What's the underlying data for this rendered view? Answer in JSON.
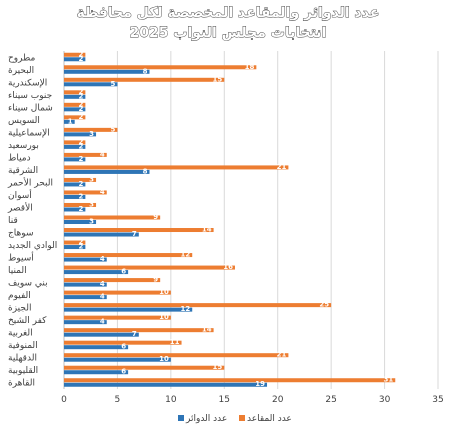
{
  "chart_data": {
    "type": "bar",
    "orientation": "horizontal",
    "title": "عدد الدوائر والمقاعد المخصصة لكل محافظة",
    "subtitle": "انتخابات مجلس النواب 2025",
    "categories": [
      "مطروح",
      "البحيرة",
      "الإسكندرية",
      "جنوب سيناء",
      "شمال سيناء",
      "السويس",
      "الإسماعيلية",
      "بورسعيد",
      "دمياط",
      "الشرقية",
      "البحر الأحمر",
      "أسوان",
      "الأقصر",
      "قنا",
      "سوهاج",
      "الوادي الجديد",
      "أسيوط",
      "المنيا",
      "بني سويف",
      "الفيوم",
      "الجيزة",
      "كفر الشيخ",
      "الغربية",
      "المنوفية",
      "الدقهلية",
      "القليوبية",
      "القاهرة"
    ],
    "series": [
      {
        "name": "عدد الدوائر",
        "color": "#2e75b6",
        "values": [
          2,
          8,
          5,
          2,
          2,
          1,
          3,
          2,
          2,
          8,
          2,
          2,
          2,
          3,
          7,
          2,
          4,
          6,
          4,
          4,
          12,
          4,
          7,
          6,
          10,
          6,
          19
        ]
      },
      {
        "name": "عدد المقاعد",
        "color": "#ed7d31",
        "values": [
          2,
          18,
          15,
          2,
          2,
          2,
          5,
          2,
          4,
          21,
          3,
          4,
          3,
          9,
          14,
          2,
          12,
          16,
          9,
          10,
          25,
          10,
          14,
          11,
          21,
          15,
          31
        ]
      }
    ],
    "xlim": [
      0,
      35
    ],
    "xticks": [
      0,
      5,
      10,
      15,
      20,
      25,
      30,
      35
    ],
    "grid": "vertical",
    "legend_position": "bottom"
  }
}
